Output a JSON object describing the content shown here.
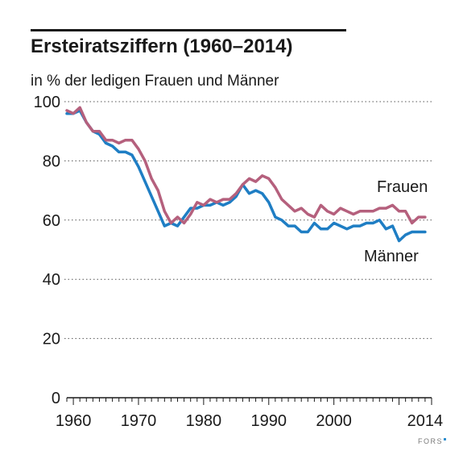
{
  "title": "Ersteiratsziffern (1960–2014)",
  "subtitle": "in % der ledigen Frauen und Männer",
  "logo": "FORS",
  "colors": {
    "frauen": "#b5607d",
    "maenner": "#1f7ec4",
    "text": "#1a1a1a",
    "grid": "#555555"
  },
  "chart_data": {
    "type": "line",
    "title": "Ersteiratsziffern (1960–2014)",
    "subtitle": "in % der ledigen Frauen und Männer",
    "xlabel": "",
    "ylabel": "",
    "xlim": [
      1959,
      2015
    ],
    "ylim": [
      0,
      100
    ],
    "x_ticks": [
      1960,
      1970,
      1980,
      1990,
      2000,
      2014
    ],
    "y_ticks": [
      0,
      20,
      40,
      60,
      80,
      100
    ],
    "grid": "horizontal dotted",
    "x": [
      1959,
      1960,
      1961,
      1962,
      1963,
      1964,
      1965,
      1966,
      1967,
      1968,
      1969,
      1970,
      1971,
      1972,
      1973,
      1974,
      1975,
      1976,
      1977,
      1978,
      1979,
      1980,
      1981,
      1982,
      1983,
      1984,
      1985,
      1986,
      1987,
      1988,
      1989,
      1990,
      1991,
      1992,
      1993,
      1994,
      1995,
      1996,
      1997,
      1998,
      1999,
      2000,
      2001,
      2002,
      2003,
      2004,
      2005,
      2006,
      2007,
      2008,
      2009,
      2010,
      2011,
      2012,
      2013,
      2014
    ],
    "series": [
      {
        "name": "Frauen",
        "values": [
          97,
          96,
          98,
          93,
          90,
          90,
          87,
          87,
          86,
          87,
          87,
          84,
          80,
          74,
          70,
          63,
          59,
          61,
          59,
          62,
          66,
          65,
          67,
          66,
          67,
          67,
          69,
          72,
          74,
          73,
          75,
          74,
          71,
          67,
          65,
          63,
          64,
          62,
          61,
          65,
          63,
          62,
          64,
          63,
          62,
          63,
          63,
          63,
          64,
          64,
          65,
          63,
          63,
          59,
          61,
          61
        ]
      },
      {
        "name": "Männer",
        "values": [
          96,
          96,
          97,
          93,
          90,
          89,
          86,
          85,
          83,
          83,
          82,
          78,
          73,
          68,
          63,
          58,
          59,
          58,
          61,
          64,
          64,
          65,
          65,
          66,
          65,
          66,
          68,
          72,
          69,
          70,
          69,
          66,
          61,
          60,
          58,
          58,
          56,
          56,
          59,
          57,
          57,
          59,
          58,
          57,
          58,
          58,
          59,
          59,
          60,
          57,
          58,
          53,
          55,
          56,
          56,
          56
        ]
      }
    ],
    "series_labels": [
      "Frauen",
      "Männer"
    ]
  }
}
